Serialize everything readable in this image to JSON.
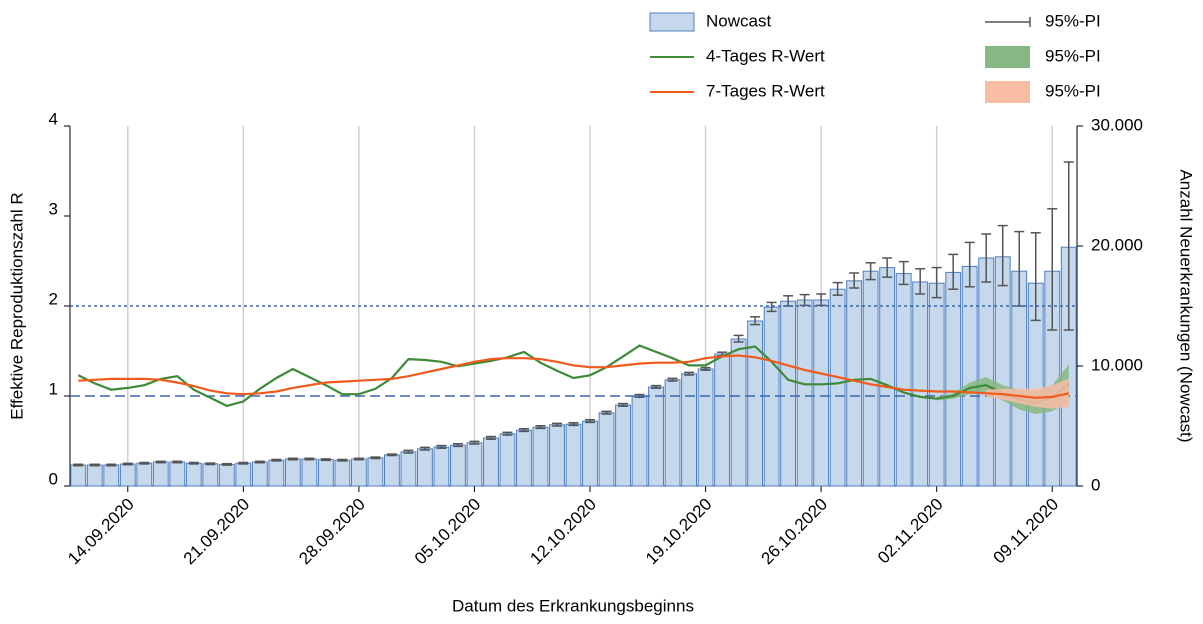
{
  "chart_data": {
    "type": "bar-line",
    "x_label": "Datum des Erkrankungsbeginns",
    "y_label": "Effektive Reproduktionszahl R",
    "y2_label": "Anzahl Neuerkrankungen (Nowcast)",
    "categories": [
      null,
      null,
      null,
      "14.09.2020",
      null,
      null,
      null,
      null,
      null,
      null,
      "21.09.2020",
      null,
      null,
      null,
      null,
      null,
      null,
      "28.09.2020",
      null,
      null,
      null,
      null,
      null,
      null,
      "05.10.2020",
      null,
      null,
      null,
      null,
      null,
      null,
      "12.10.2020",
      null,
      null,
      null,
      null,
      null,
      null,
      "19.10.2020",
      null,
      null,
      null,
      null,
      null,
      null,
      "26.10.2020",
      null,
      null,
      null,
      null,
      null,
      null,
      "02.11.2020",
      null,
      null,
      null,
      null,
      null,
      null,
      "09.11.2020",
      null
    ],
    "ylim": [
      0,
      4
    ],
    "yticks": [
      0,
      1,
      2,
      3,
      4
    ],
    "y2lim": [
      0,
      30000
    ],
    "y2ticks": [
      0,
      {
        "value": 10000,
        "label": "10.000"
      },
      {
        "value": 20000,
        "label": "20.000"
      },
      {
        "value": 30000,
        "label": "30.000"
      }
    ],
    "grid": true,
    "hlines": [
      {
        "value": 2,
        "style": "dotted",
        "color": "#3a66b0"
      },
      {
        "value": 1,
        "style": "dashed",
        "color": "#3a66b0"
      }
    ],
    "series": [
      {
        "name": "Nowcast",
        "type": "bar",
        "axis": "y2",
        "color": "#c6d8ec",
        "edge": "#4f7fc0",
        "values": [
          1750,
          1750,
          1750,
          1830,
          1900,
          2000,
          2000,
          1900,
          1850,
          1800,
          1900,
          2000,
          2150,
          2250,
          2250,
          2200,
          2150,
          2250,
          2350,
          2600,
          2850,
          3100,
          3250,
          3400,
          3600,
          4000,
          4350,
          4650,
          4900,
          5100,
          5150,
          5400,
          6100,
          6750,
          7500,
          8250,
          8850,
          9350,
          9750,
          11000,
          12250,
          13750,
          14900,
          15400,
          15500,
          15500,
          16400,
          17100,
          17900,
          18200,
          17700,
          17000,
          16900,
          17800,
          18300,
          19000,
          19100,
          17900,
          16900,
          17900,
          19900
        ],
        "error": {
          "name": "95%-PI",
          "color": "#555555",
          "lower": [
            1690,
            1690,
            1690,
            1770,
            1840,
            1940,
            1940,
            1840,
            1790,
            1740,
            1840,
            1940,
            2090,
            2190,
            2190,
            2140,
            2090,
            2190,
            2290,
            2540,
            2750,
            3000,
            3150,
            3300,
            3500,
            3900,
            4250,
            4550,
            4800,
            5000,
            5050,
            5300,
            6000,
            6650,
            7400,
            8150,
            8750,
            9250,
            9650,
            10850,
            12000,
            13450,
            14550,
            15000,
            15050,
            15050,
            15900,
            16500,
            17200,
            17400,
            16800,
            16000,
            15700,
            16400,
            16600,
            17000,
            16700,
            15000,
            13800,
            13000,
            13000
          ],
          "upper": [
            1810,
            1810,
            1810,
            1890,
            1960,
            2060,
            2060,
            1960,
            1910,
            1860,
            1960,
            2060,
            2210,
            2310,
            2310,
            2260,
            2210,
            2310,
            2410,
            2660,
            2970,
            3220,
            3370,
            3520,
            3720,
            4120,
            4470,
            4770,
            5020,
            5220,
            5270,
            5520,
            6220,
            6870,
            7620,
            8370,
            8970,
            9470,
            9870,
            11150,
            12550,
            14100,
            15300,
            15850,
            15950,
            16000,
            16950,
            17750,
            18600,
            19000,
            18700,
            18100,
            18200,
            19300,
            20300,
            21000,
            21700,
            21200,
            21100,
            23100,
            27000
          ]
        }
      },
      {
        "name": "4-Tages R-Wert",
        "type": "line",
        "color": "#3d8b37",
        "values": [
          1.23,
          1.14,
          1.07,
          1.09,
          1.12,
          1.19,
          1.22,
          1.07,
          0.98,
          0.89,
          0.94,
          1.08,
          1.2,
          1.3,
          1.21,
          1.12,
          1.02,
          1.02,
          1.08,
          1.2,
          1.41,
          1.4,
          1.38,
          1.33,
          1.36,
          1.39,
          1.43,
          1.49,
          1.37,
          1.28,
          1.2,
          1.23,
          1.32,
          1.44,
          1.56,
          1.49,
          1.42,
          1.34,
          1.34,
          1.44,
          1.52,
          1.55,
          1.38,
          1.18,
          1.13,
          1.13,
          1.14,
          1.18,
          1.19,
          1.12,
          1.04,
          0.99,
          0.97,
          1.0,
          1.09,
          1.12,
          1.03,
          0.96,
          0.92,
          0.98,
          1.14
        ],
        "band": {
          "name": "95%-PI",
          "color": "#86b883",
          "lower": [
            null,
            null,
            null,
            null,
            null,
            null,
            null,
            null,
            null,
            null,
            null,
            null,
            null,
            null,
            null,
            null,
            null,
            null,
            null,
            null,
            null,
            null,
            null,
            null,
            null,
            null,
            null,
            null,
            null,
            null,
            null,
            null,
            null,
            null,
            null,
            null,
            null,
            null,
            null,
            null,
            null,
            null,
            null,
            null,
            null,
            null,
            null,
            null,
            null,
            null,
            null,
            null,
            0.95,
            0.97,
            1.02,
            1.04,
            0.95,
            0.85,
            0.8,
            0.83,
            0.93
          ],
          "upper": [
            null,
            null,
            null,
            null,
            null,
            null,
            null,
            null,
            null,
            null,
            null,
            null,
            null,
            null,
            null,
            null,
            null,
            null,
            null,
            null,
            null,
            null,
            null,
            null,
            null,
            null,
            null,
            null,
            null,
            null,
            null,
            null,
            null,
            null,
            null,
            null,
            null,
            null,
            null,
            null,
            null,
            null,
            null,
            null,
            null,
            null,
            null,
            null,
            null,
            null,
            null,
            null,
            0.99,
            1.03,
            1.15,
            1.21,
            1.12,
            1.07,
            1.05,
            1.12,
            1.35
          ]
        }
      },
      {
        "name": "7-Tages R-Wert",
        "type": "line",
        "color": "#f05a1a",
        "values": [
          1.17,
          1.18,
          1.19,
          1.19,
          1.19,
          1.18,
          1.15,
          1.11,
          1.06,
          1.03,
          1.02,
          1.03,
          1.05,
          1.09,
          1.12,
          1.15,
          1.16,
          1.17,
          1.18,
          1.19,
          1.22,
          1.26,
          1.3,
          1.34,
          1.38,
          1.41,
          1.42,
          1.42,
          1.41,
          1.38,
          1.34,
          1.32,
          1.32,
          1.34,
          1.36,
          1.37,
          1.37,
          1.38,
          1.42,
          1.44,
          1.45,
          1.43,
          1.39,
          1.34,
          1.29,
          1.25,
          1.21,
          1.17,
          1.13,
          1.1,
          1.07,
          1.06,
          1.05,
          1.05,
          1.04,
          1.03,
          1.02,
          1.0,
          0.98,
          0.99,
          1.03
        ],
        "band": {
          "name": "95%-PI",
          "color": "#f9bda6",
          "lower": [
            null,
            null,
            null,
            null,
            null,
            null,
            null,
            null,
            null,
            null,
            null,
            null,
            null,
            null,
            null,
            null,
            null,
            null,
            null,
            null,
            null,
            null,
            null,
            null,
            null,
            null,
            null,
            null,
            null,
            null,
            null,
            null,
            null,
            null,
            null,
            null,
            null,
            null,
            null,
            null,
            null,
            null,
            null,
            null,
            null,
            null,
            null,
            null,
            null,
            null,
            null,
            null,
            null,
            null,
            null,
            0.99,
            0.96,
            0.92,
            0.88,
            0.86,
            0.88
          ],
          "upper": [
            null,
            null,
            null,
            null,
            null,
            null,
            null,
            null,
            null,
            null,
            null,
            null,
            null,
            null,
            null,
            null,
            null,
            null,
            null,
            null,
            null,
            null,
            null,
            null,
            null,
            null,
            null,
            null,
            null,
            null,
            null,
            null,
            null,
            null,
            null,
            null,
            null,
            null,
            null,
            null,
            null,
            null,
            null,
            null,
            null,
            null,
            null,
            null,
            null,
            null,
            null,
            null,
            null,
            null,
            null,
            1.07,
            1.08,
            1.08,
            1.08,
            1.12,
            1.19
          ]
        }
      }
    ]
  }
}
